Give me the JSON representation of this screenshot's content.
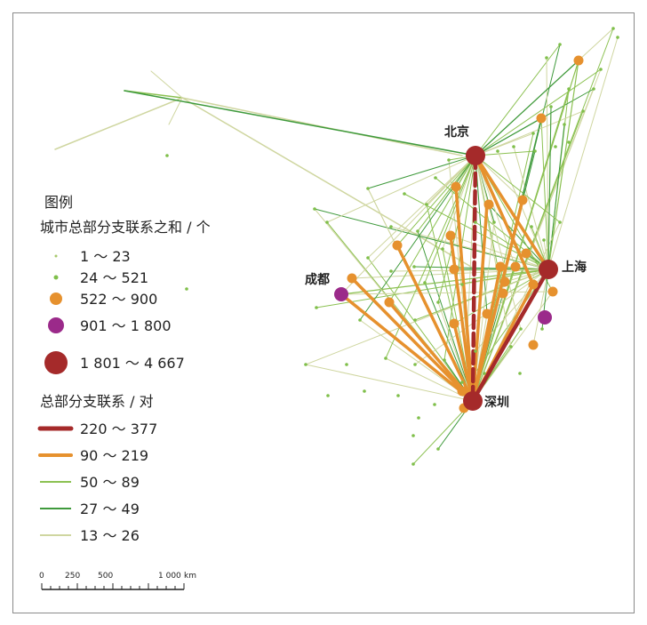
{
  "cities": {
    "beijing": "北京",
    "shanghai": "上海",
    "chengdu": "成都",
    "shenzhen": "深圳"
  },
  "legend": {
    "title": "图例",
    "node_title": "城市总部分支联系之和 / 个",
    "node_classes": [
      {
        "label": "1 ～ 23",
        "color": "#a8c96c"
      },
      {
        "label": "24 ～ 521",
        "color": "#7fbf4a"
      },
      {
        "label": "522 ～ 900",
        "color": "#e6912e"
      },
      {
        "label": "901 ～ 1 800",
        "color": "#9b2a8a"
      },
      {
        "label": "1 801 ～ 4 667",
        "color": "#a52a2a"
      }
    ],
    "link_title": "总部分支联系 / 对",
    "link_classes": [
      {
        "label": "220 ～ 377",
        "color": "#a52a2a"
      },
      {
        "label": "90 ～ 219",
        "color": "#e6912e"
      },
      {
        "label": "50 ～ 89",
        "color": "#8cc152"
      },
      {
        "label": "27 ～ 49",
        "color": "#3f9a3c"
      },
      {
        "label": "13 ～ 26",
        "color": "#cfd6a0"
      }
    ]
  },
  "scale_bar": {
    "ticks": [
      "0",
      "250",
      "500",
      "1 000"
    ],
    "unit": "km"
  }
}
